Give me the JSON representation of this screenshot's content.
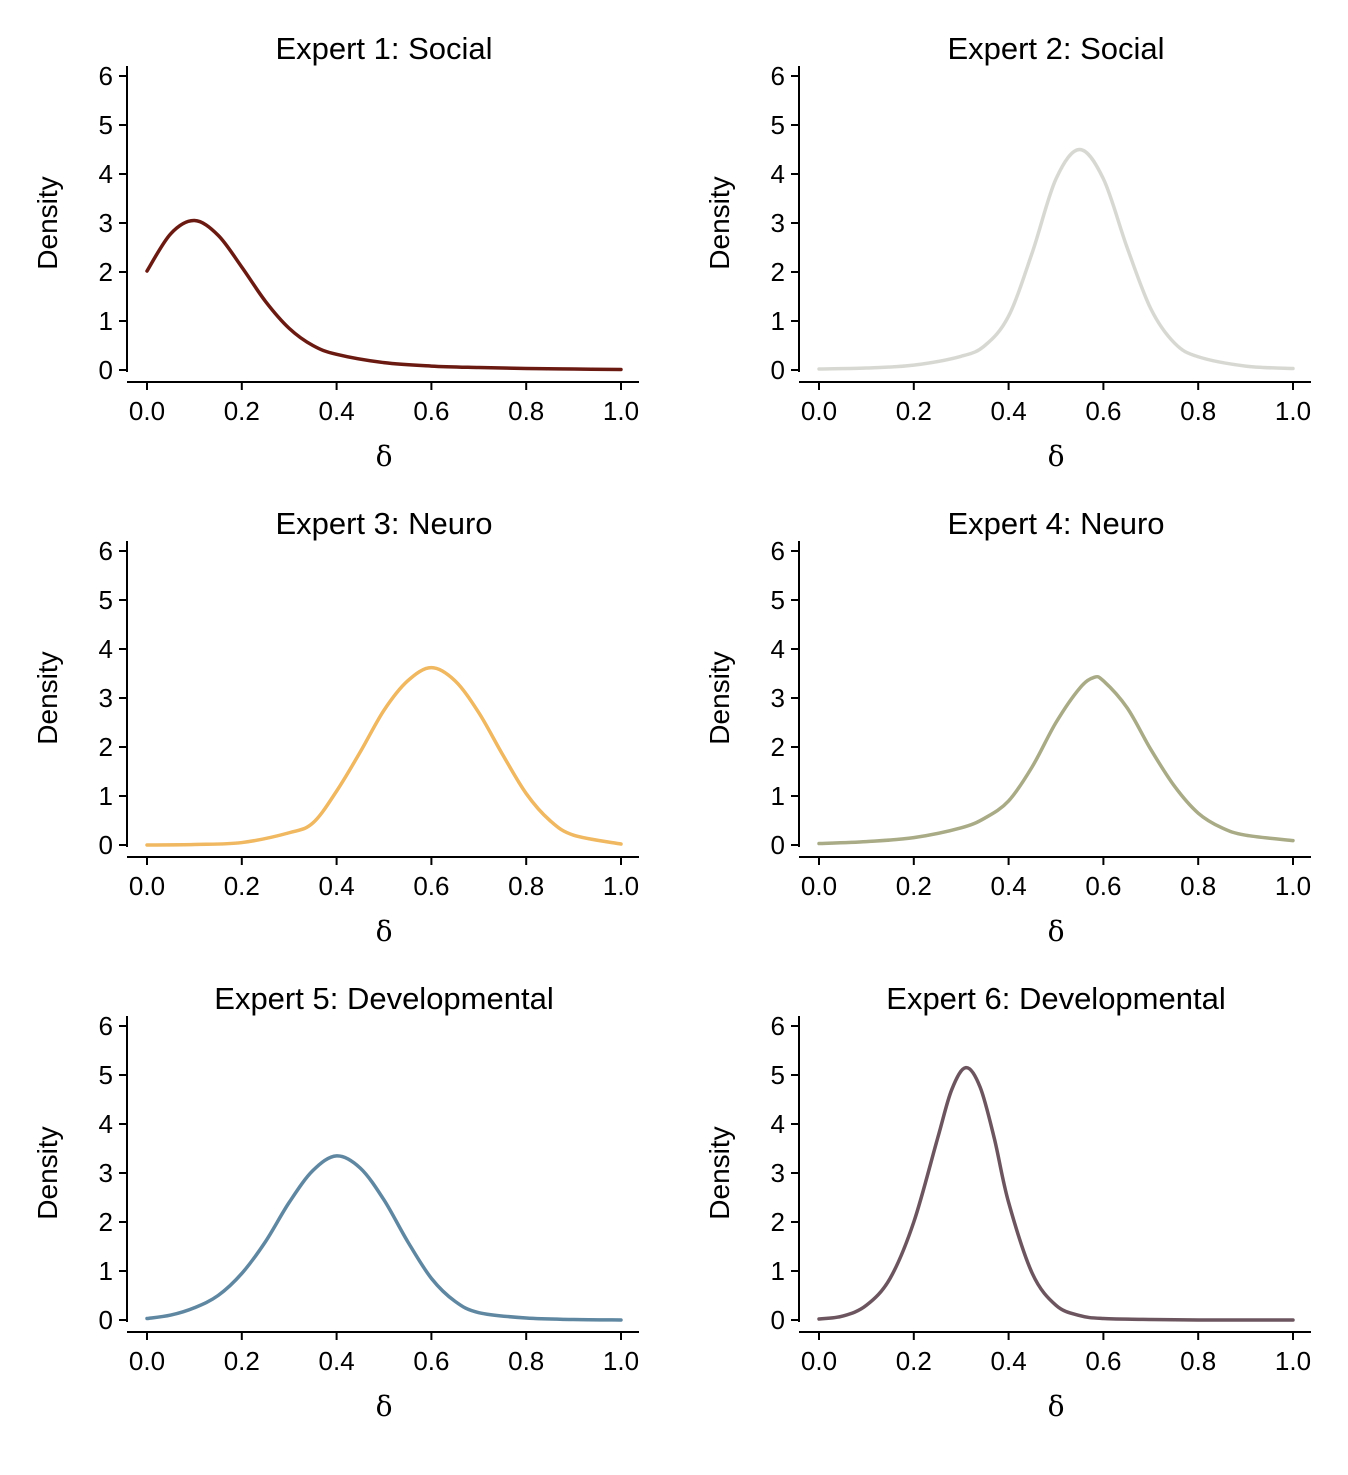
{
  "chart_data": [
    {
      "type": "line",
      "title": "Expert 1: Social",
      "xlabel": "δ",
      "ylabel": "Density",
      "xlim": [
        0,
        1
      ],
      "ylim": [
        0,
        6
      ],
      "xticks": [
        "0.0",
        "0.2",
        "0.4",
        "0.6",
        "0.8",
        "1.0"
      ],
      "yticks": [
        "0",
        "1",
        "2",
        "3",
        "4",
        "5",
        "6"
      ],
      "color": "#6b1a12",
      "x": [
        0.0,
        0.05,
        0.1,
        0.15,
        0.2,
        0.25,
        0.3,
        0.35,
        0.4,
        0.5,
        0.6,
        0.7,
        0.8,
        0.9,
        1.0
      ],
      "values": [
        2.02,
        2.78,
        3.05,
        2.75,
        2.1,
        1.4,
        0.85,
        0.5,
        0.32,
        0.15,
        0.08,
        0.05,
        0.03,
        0.02,
        0.01
      ]
    },
    {
      "type": "line",
      "title": "Expert 2: Social",
      "xlabel": "δ",
      "ylabel": "Density",
      "xlim": [
        0,
        1
      ],
      "ylim": [
        0,
        6
      ],
      "xticks": [
        "0.0",
        "0.2",
        "0.4",
        "0.6",
        "0.8",
        "1.0"
      ],
      "yticks": [
        "0",
        "1",
        "2",
        "3",
        "4",
        "5",
        "6"
      ],
      "color": "#d8d8d3",
      "x": [
        0.0,
        0.1,
        0.2,
        0.3,
        0.35,
        0.4,
        0.45,
        0.5,
        0.55,
        0.6,
        0.65,
        0.7,
        0.75,
        0.8,
        0.9,
        1.0
      ],
      "values": [
        0.02,
        0.04,
        0.1,
        0.28,
        0.5,
        1.1,
        2.4,
        3.9,
        4.5,
        3.9,
        2.5,
        1.25,
        0.55,
        0.27,
        0.08,
        0.03
      ]
    },
    {
      "type": "line",
      "title": "Expert 3: Neuro",
      "xlabel": "δ",
      "ylabel": "Density",
      "xlim": [
        0,
        1
      ],
      "ylim": [
        0,
        6
      ],
      "xticks": [
        "0.0",
        "0.2",
        "0.4",
        "0.6",
        "0.8",
        "1.0"
      ],
      "yticks": [
        "0",
        "1",
        "2",
        "3",
        "4",
        "5",
        "6"
      ],
      "color": "#f0b860",
      "x": [
        0.0,
        0.1,
        0.2,
        0.3,
        0.35,
        0.4,
        0.45,
        0.5,
        0.55,
        0.6,
        0.65,
        0.7,
        0.75,
        0.8,
        0.85,
        0.9,
        1.0
      ],
      "values": [
        0.0,
        0.01,
        0.05,
        0.25,
        0.45,
        1.1,
        1.9,
        2.75,
        3.35,
        3.62,
        3.35,
        2.7,
        1.85,
        1.05,
        0.5,
        0.2,
        0.02
      ]
    },
    {
      "type": "line",
      "title": "Expert 4: Neuro",
      "xlabel": "δ",
      "ylabel": "Density",
      "xlim": [
        0,
        1
      ],
      "ylim": [
        0,
        6
      ],
      "xticks": [
        "0.0",
        "0.2",
        "0.4",
        "0.6",
        "0.8",
        "1.0"
      ],
      "yticks": [
        "0",
        "1",
        "2",
        "3",
        "4",
        "5",
        "6"
      ],
      "color": "#a9ab86",
      "x": [
        0.0,
        0.1,
        0.2,
        0.3,
        0.35,
        0.4,
        0.45,
        0.5,
        0.55,
        0.58,
        0.6,
        0.65,
        0.7,
        0.75,
        0.8,
        0.85,
        0.9,
        1.0
      ],
      "values": [
        0.03,
        0.07,
        0.15,
        0.35,
        0.55,
        0.9,
        1.6,
        2.5,
        3.2,
        3.42,
        3.35,
        2.8,
        1.95,
        1.2,
        0.65,
        0.35,
        0.2,
        0.09
      ]
    },
    {
      "type": "line",
      "title": "Expert 5: Developmental",
      "xlabel": "δ",
      "ylabel": "Density",
      "xlim": [
        0,
        1
      ],
      "ylim": [
        0,
        6
      ],
      "xticks": [
        "0.0",
        "0.2",
        "0.4",
        "0.6",
        "0.8",
        "1.0"
      ],
      "yticks": [
        "0",
        "1",
        "2",
        "3",
        "4",
        "5",
        "6"
      ],
      "color": "#5f87a1",
      "x": [
        0.0,
        0.05,
        0.1,
        0.15,
        0.2,
        0.25,
        0.3,
        0.35,
        0.4,
        0.45,
        0.5,
        0.55,
        0.6,
        0.65,
        0.7,
        0.8,
        0.9,
        1.0
      ],
      "values": [
        0.03,
        0.1,
        0.25,
        0.5,
        0.95,
        1.6,
        2.4,
        3.05,
        3.35,
        3.1,
        2.45,
        1.6,
        0.85,
        0.38,
        0.15,
        0.04,
        0.01,
        0.0
      ]
    },
    {
      "type": "line",
      "title": "Expert 6: Developmental",
      "xlabel": "δ",
      "ylabel": "Density",
      "xlim": [
        0,
        1
      ],
      "ylim": [
        0,
        6
      ],
      "xticks": [
        "0.0",
        "0.2",
        "0.4",
        "0.6",
        "0.8",
        "1.0"
      ],
      "yticks": [
        "0",
        "1",
        "2",
        "3",
        "4",
        "5",
        "6"
      ],
      "color": "#6c555e",
      "x": [
        0.0,
        0.05,
        0.1,
        0.15,
        0.2,
        0.25,
        0.28,
        0.31,
        0.34,
        0.37,
        0.4,
        0.45,
        0.5,
        0.55,
        0.6,
        0.7,
        0.8,
        0.9,
        1.0
      ],
      "values": [
        0.02,
        0.08,
        0.3,
        0.85,
        2.0,
        3.7,
        4.7,
        5.15,
        4.75,
        3.7,
        2.4,
        0.95,
        0.3,
        0.09,
        0.03,
        0.01,
        0.0,
        0.0,
        0.0
      ]
    }
  ]
}
